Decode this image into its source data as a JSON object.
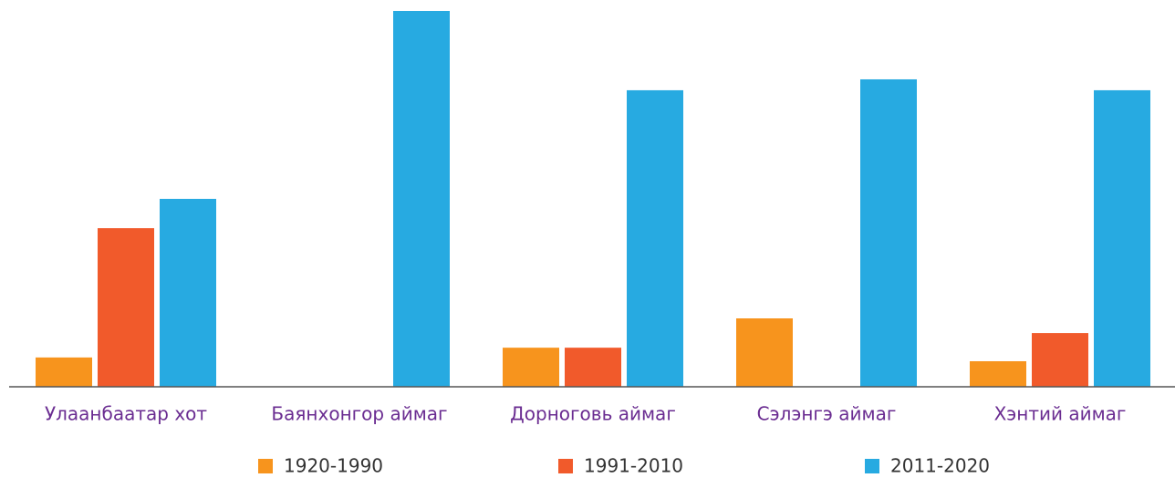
{
  "chart_data": {
    "type": "bar",
    "categories": [
      "Улаанбаатар хот",
      "Баянхонгор аймаг",
      "Дорноговь аймаг",
      "Сэлэнгэ аймаг",
      "Хэнтий аймаг"
    ],
    "series": [
      {
        "name": "1920-1990",
        "color": "#f7941d",
        "values": [
          7.8,
          0,
          10.4,
          18.2,
          6.8
        ]
      },
      {
        "name": "1991-2010",
        "color": "#f15a2b",
        "values": [
          42.2,
          0,
          10.4,
          0,
          14.3
        ]
      },
      {
        "name": "2011-2020",
        "color": "#27aae1",
        "values": [
          50,
          100,
          78.9,
          81.8,
          78.9
        ]
      }
    ],
    "ylim": [
      0,
      100
    ]
  }
}
